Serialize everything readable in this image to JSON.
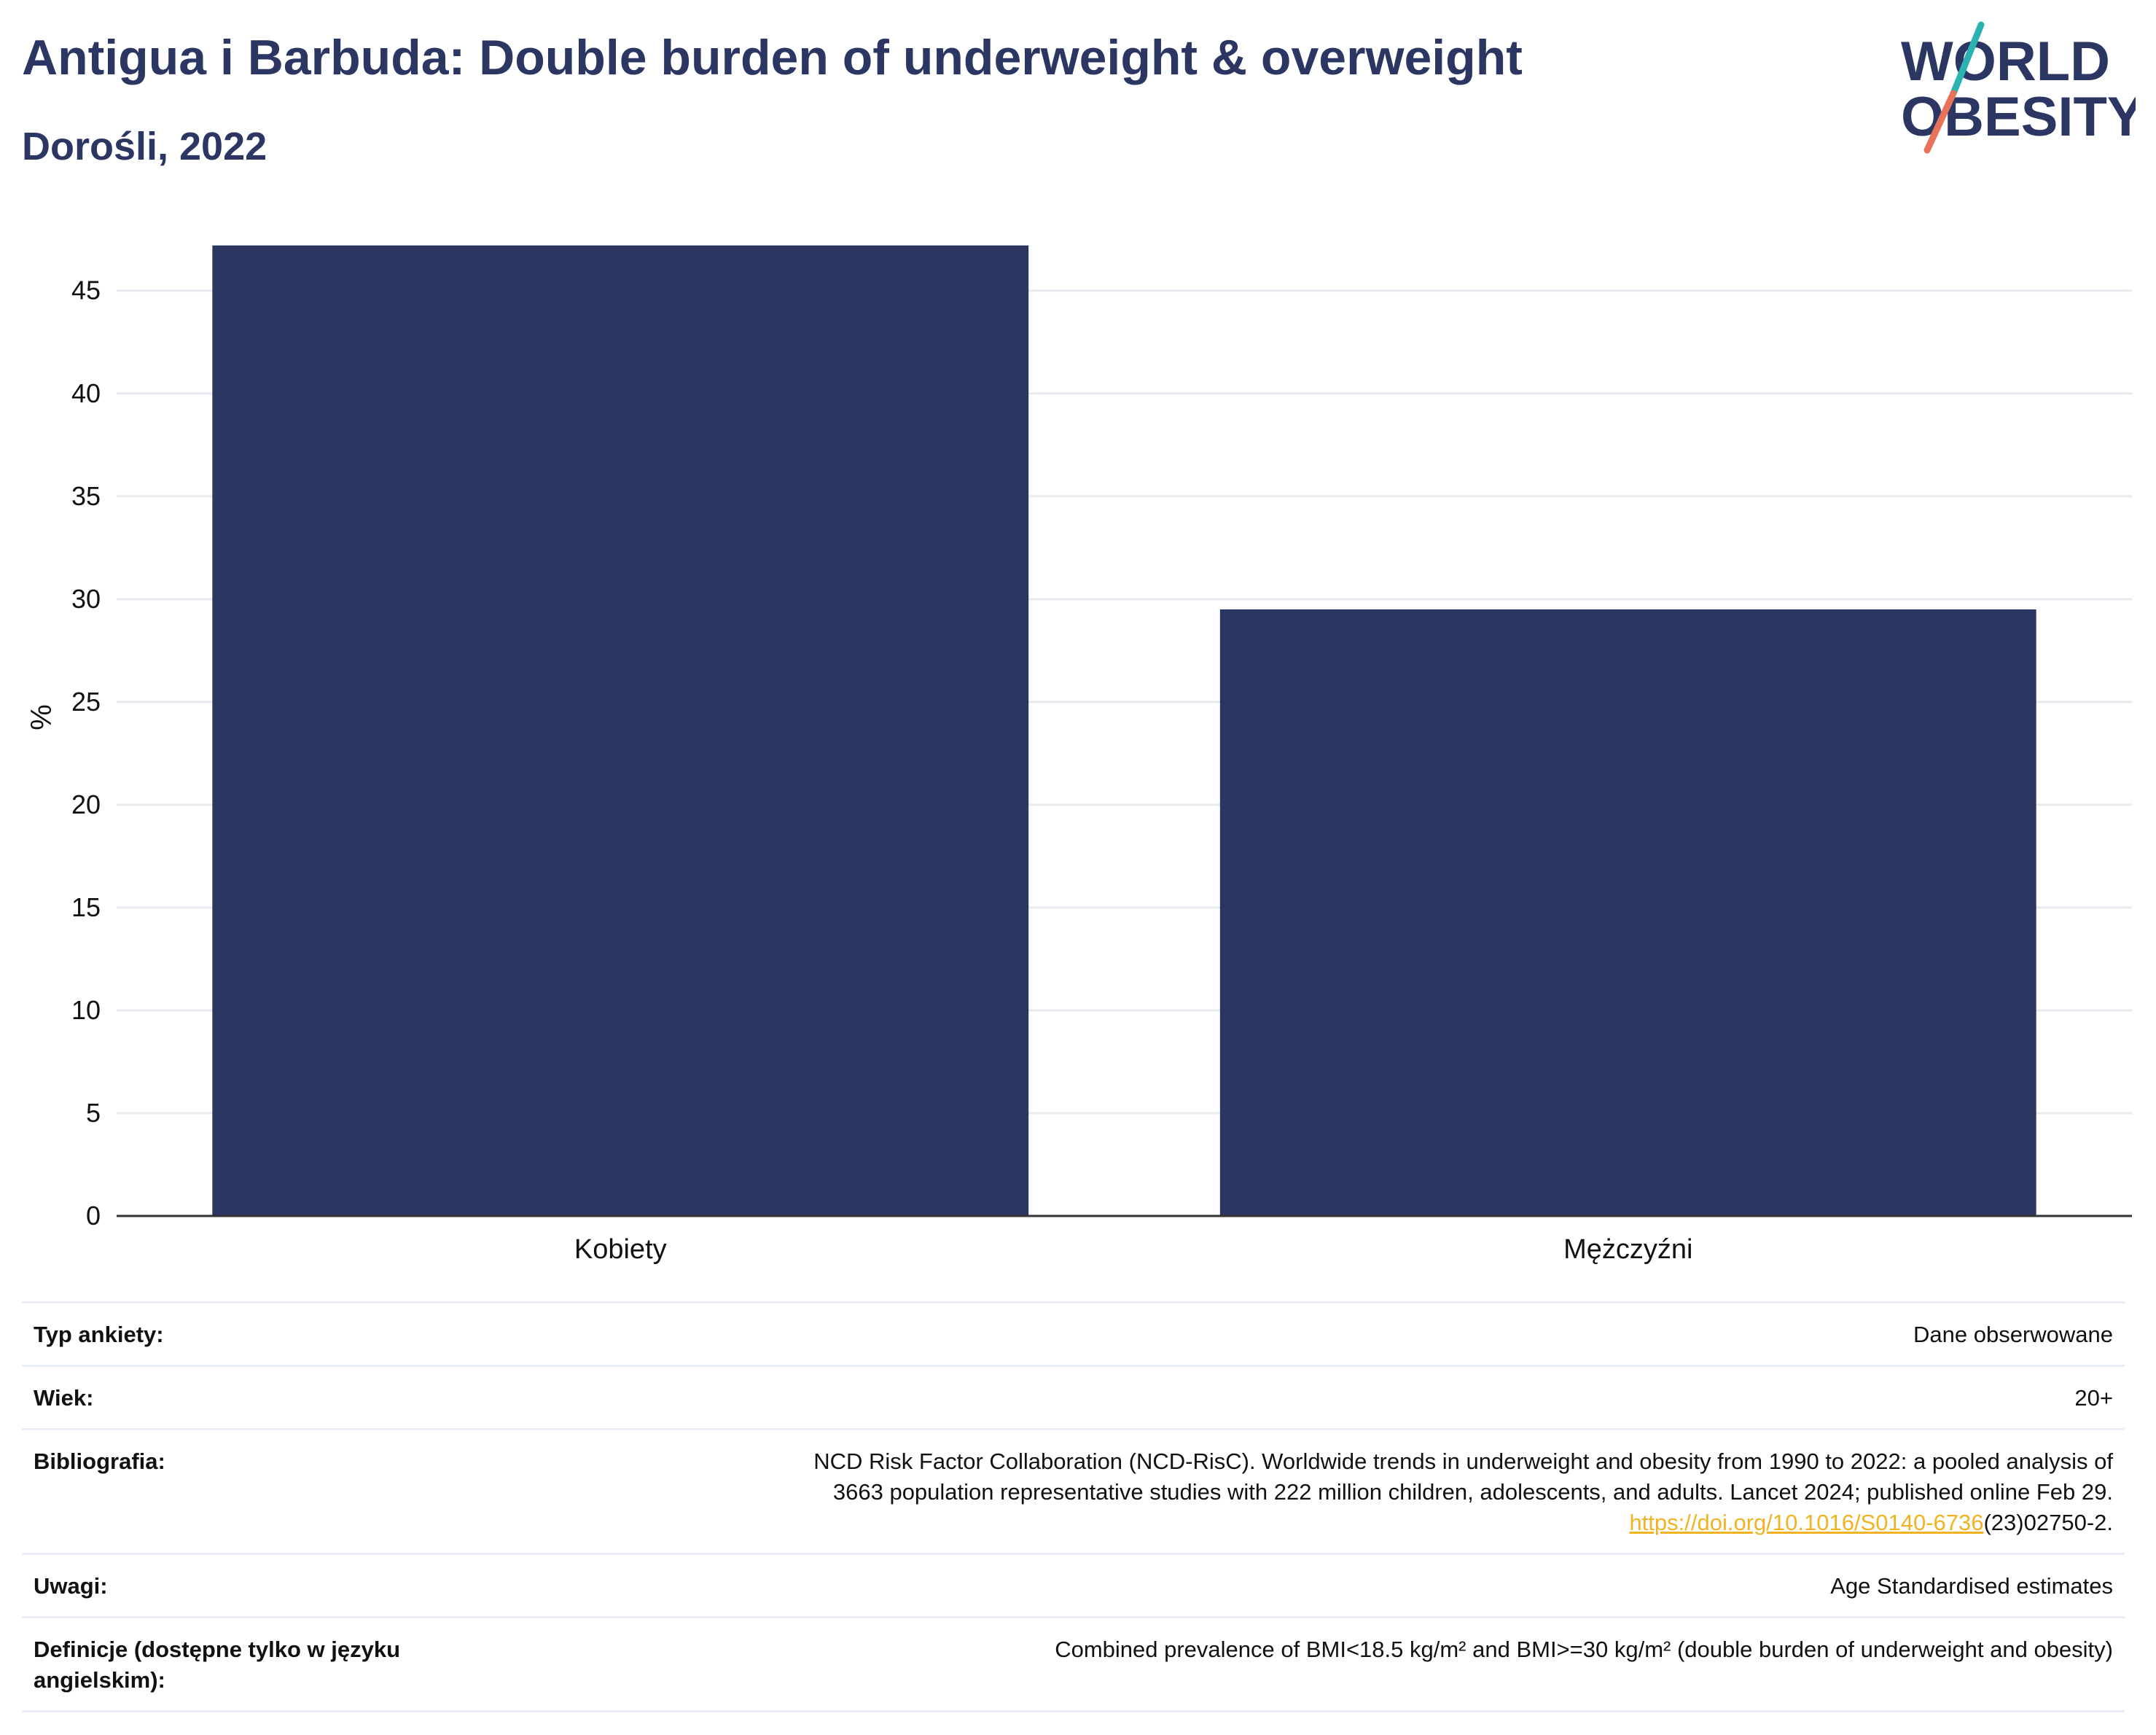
{
  "header": {
    "title": "Antigua i Barbuda: Double burden of underweight & overweight",
    "subtitle": "Dorośli, 2022"
  },
  "logo": {
    "line1": "WORLD",
    "line2": "OBESITY"
  },
  "colors": {
    "bar": "#2b3663",
    "accent_teal": "#2bb3b1",
    "accent_coral": "#e8735a",
    "link": "#f0b323"
  },
  "chart_data": {
    "type": "bar",
    "categories": [
      "Kobiety",
      "Mężczyźni"
    ],
    "values": [
      47.2,
      29.5
    ],
    "title": "Antigua i Barbuda: Double burden of underweight & overweight",
    "subtitle": "Dorośli, 2022",
    "xlabel": "",
    "ylabel": "%",
    "ylim": [
      0,
      48.5
    ],
    "yticks": [
      0,
      5,
      10,
      15,
      20,
      25,
      30,
      35,
      40,
      45
    ],
    "grid": true
  },
  "meta": [
    {
      "label": "Typ ankiety:",
      "value": "Dane obserwowane"
    },
    {
      "label": "Wiek:",
      "value": "20+"
    },
    {
      "label": "Bibliografia:",
      "value_lines": [
        "NCD Risk Factor Collaboration (NCD-RisC). Worldwide trends in underweight and obesity from 1990 to 2022: a pooled analysis of",
        "3663 population representative studies with 222 million children, adolescents, and adults. Lancet 2024; published online Feb 29."
      ],
      "link_text": "https://doi.org/10.1016/S0140-6736",
      "link_suffix": "(23)02750-2."
    },
    {
      "label": "Uwagi:",
      "value": "Age Standardised estimates"
    },
    {
      "label": "Definicje (dostępne tylko w języku angielskim):",
      "value": "Combined prevalence of BMI<18.5 kg/m² and BMI>=30 kg/m² (double burden of underweight and obesity)"
    }
  ]
}
